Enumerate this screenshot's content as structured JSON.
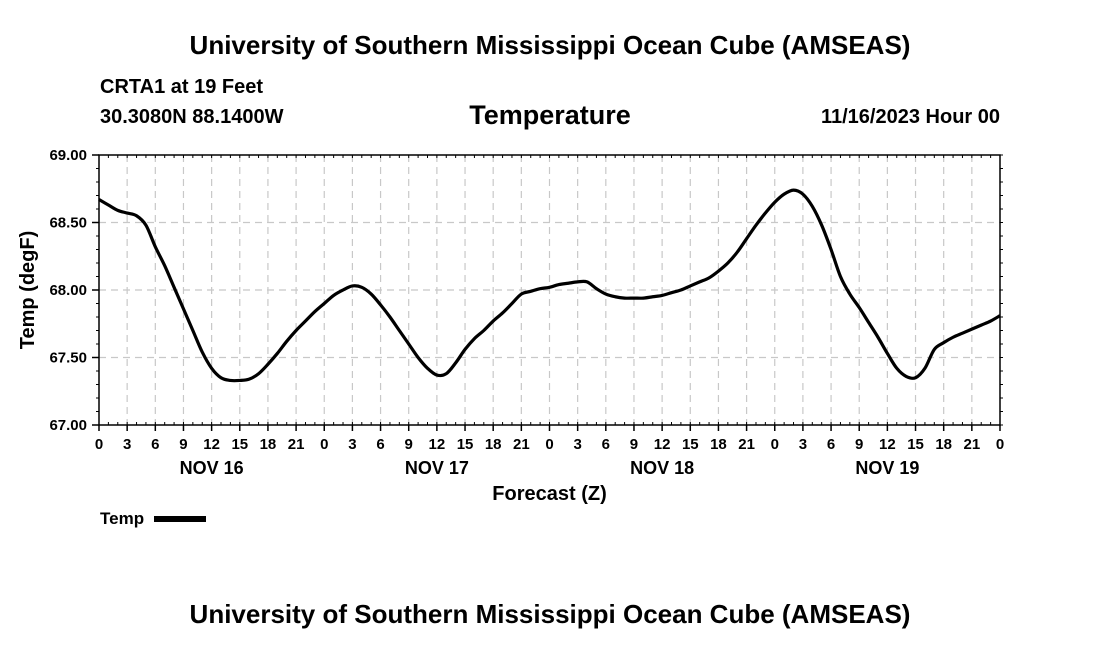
{
  "header": {
    "title": "University of Southern Mississippi Ocean Cube (AMSEAS)",
    "station": "CRTA1 at 19 Feet",
    "coords": "30.3080N  88.1400W",
    "run_time": "11/16/2023 Hour 00"
  },
  "footer": {
    "title": "University of Southern Mississippi Ocean Cube (AMSEAS)"
  },
  "chart_data": {
    "type": "line",
    "title": "Temperature",
    "xlabel": "Forecast (Z)",
    "ylabel": "Temp (degF)",
    "ylim": [
      67.0,
      69.0
    ],
    "xlim": [
      0,
      96
    ],
    "y_ticks": [
      "67.00",
      "67.50",
      "68.00",
      "68.50",
      "69.00"
    ],
    "y_tick_values": [
      67.0,
      67.5,
      68.0,
      68.5,
      69.0
    ],
    "x_tick_labels": [
      "0",
      "3",
      "6",
      "9",
      "12",
      "15",
      "18",
      "21",
      "0",
      "3",
      "6",
      "9",
      "12",
      "15",
      "18",
      "21",
      "0",
      "3",
      "6",
      "9",
      "12",
      "15",
      "18",
      "21",
      "0",
      "3",
      "6",
      "9",
      "12",
      "15",
      "18",
      "21",
      "0"
    ],
    "day_labels": [
      {
        "label": "NOV 16",
        "hour": 12
      },
      {
        "label": "NOV 17",
        "hour": 36
      },
      {
        "label": "NOV 18",
        "hour": 60
      },
      {
        "label": "NOV 19",
        "hour": 84
      }
    ],
    "grid": true,
    "legend": {
      "label": "Temp",
      "position": "bottom-left"
    },
    "series": [
      {
        "name": "Temp",
        "color": "#000000",
        "x": [
          0,
          1,
          2,
          3,
          4,
          5,
          6,
          7,
          8,
          9,
          10,
          11,
          12,
          13,
          14,
          15,
          16,
          17,
          18,
          19,
          20,
          21,
          22,
          23,
          24,
          25,
          26,
          27,
          28,
          29,
          30,
          31,
          32,
          33,
          34,
          35,
          36,
          37,
          38,
          39,
          40,
          41,
          42,
          43,
          44,
          45,
          46,
          47,
          48,
          49,
          50,
          51,
          52,
          53,
          54,
          55,
          56,
          57,
          58,
          59,
          60,
          61,
          62,
          63,
          64,
          65,
          66,
          67,
          68,
          69,
          70,
          71,
          72,
          73,
          74,
          75,
          76,
          77,
          78,
          79,
          80,
          81,
          82,
          83,
          84,
          85,
          86,
          87,
          88,
          89,
          90,
          91,
          92,
          93,
          94,
          95,
          96
        ],
        "values": [
          68.67,
          68.63,
          68.59,
          68.57,
          68.55,
          68.48,
          68.32,
          68.18,
          68.02,
          67.86,
          67.7,
          67.54,
          67.42,
          67.35,
          67.33,
          67.33,
          67.34,
          67.38,
          67.45,
          67.53,
          67.62,
          67.7,
          67.77,
          67.84,
          67.9,
          67.96,
          68.0,
          68.03,
          68.02,
          67.97,
          67.89,
          67.8,
          67.7,
          67.6,
          67.5,
          67.42,
          67.37,
          67.38,
          67.46,
          67.56,
          67.64,
          67.7,
          67.77,
          67.83,
          67.9,
          67.97,
          67.99,
          68.01,
          68.02,
          68.04,
          68.05,
          68.06,
          68.06,
          68.01,
          67.97,
          67.95,
          67.94,
          67.94,
          67.94,
          67.95,
          67.96,
          67.98,
          68.0,
          68.03,
          68.06,
          68.09,
          68.14,
          68.2,
          68.28,
          68.38,
          68.48,
          68.57,
          68.65,
          68.71,
          68.74,
          68.71,
          68.62,
          68.48,
          68.3,
          68.1,
          67.97,
          67.87,
          67.76,
          67.65,
          67.53,
          67.42,
          67.36,
          67.35,
          67.42,
          67.56,
          67.61,
          67.65,
          67.68,
          67.71,
          67.74,
          67.77,
          67.81
        ]
      }
    ]
  }
}
